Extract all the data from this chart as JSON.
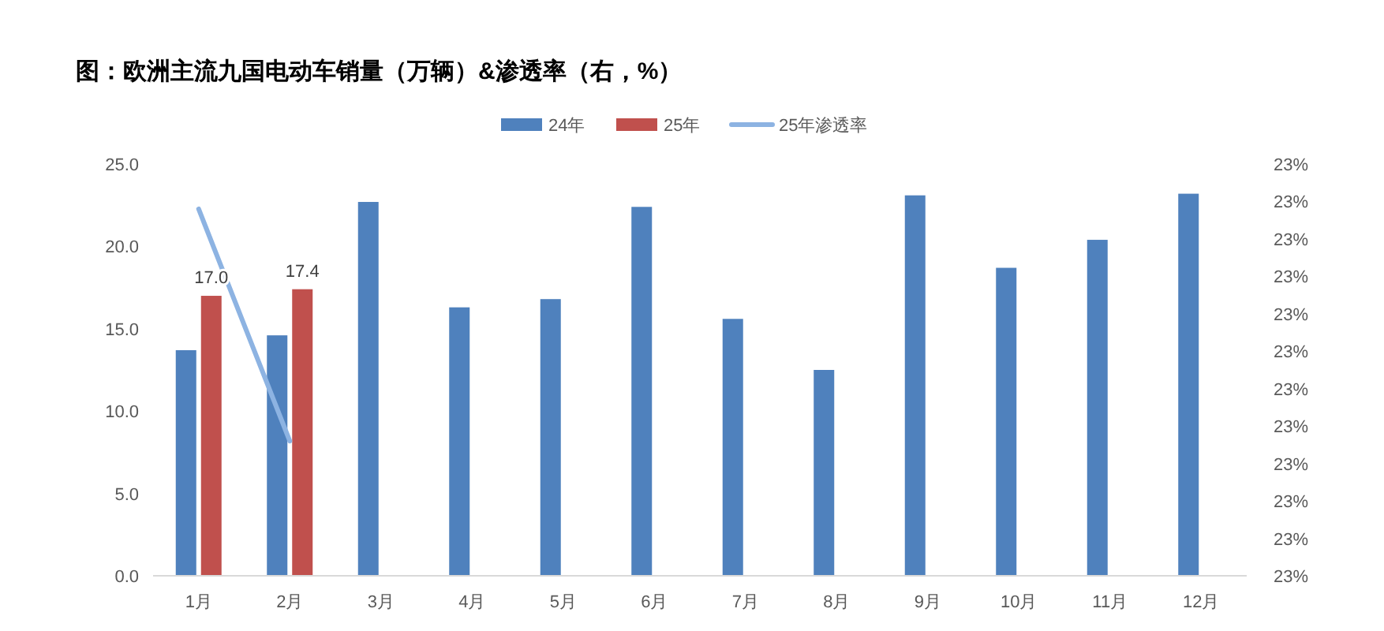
{
  "chart_data": {
    "type": "bar",
    "title": "图：欧洲主流九国电动车销量（万辆）&渗透率（右，%）",
    "categories": [
      "1月",
      "2月",
      "3月",
      "4月",
      "5月",
      "6月",
      "7月",
      "8月",
      "9月",
      "10月",
      "11月",
      "12月"
    ],
    "series": [
      {
        "name": "24年",
        "color": "#4f81bd",
        "values": [
          13.7,
          14.6,
          22.7,
          16.3,
          16.8,
          22.4,
          15.6,
          12.5,
          23.1,
          18.7,
          20.4,
          23.2
        ]
      },
      {
        "name": "25年",
        "color": "#c0504d",
        "values": [
          17.0,
          17.4,
          null,
          null,
          null,
          null,
          null,
          null,
          null,
          null,
          null,
          null
        ],
        "value_labels": [
          "17.0",
          "17.4",
          null,
          null,
          null,
          null,
          null,
          null,
          null,
          null,
          null,
          null
        ]
      },
      {
        "name": "25年渗透率",
        "type": "line",
        "axis": "y2",
        "color": "#8db3e2",
        "values": [
          22.99,
          22.68,
          null,
          null,
          null,
          null,
          null,
          null,
          null,
          null,
          null,
          null
        ]
      }
    ],
    "ylim": [
      0,
      25
    ],
    "yticks": [
      {
        "value": 0,
        "label": "0.0"
      },
      {
        "value": 5,
        "label": "5.0"
      },
      {
        "value": 10,
        "label": "10.0"
      },
      {
        "value": 15,
        "label": "15.0"
      },
      {
        "value": 20,
        "label": "20.0"
      },
      {
        "value": 25,
        "label": "25.0"
      }
    ],
    "y2lim": [
      22.5,
      23.05
    ],
    "y2ticks": [
      {
        "value": 22.5,
        "label": "23%"
      },
      {
        "value": 22.55,
        "label": "23%"
      },
      {
        "value": 22.6,
        "label": "23%"
      },
      {
        "value": 22.65,
        "label": "23%"
      },
      {
        "value": 22.7,
        "label": "23%"
      },
      {
        "value": 22.75,
        "label": "23%"
      },
      {
        "value": 22.8,
        "label": "23%"
      },
      {
        "value": 22.85,
        "label": "23%"
      },
      {
        "value": 22.9,
        "label": "23%"
      },
      {
        "value": 22.95,
        "label": "23%"
      },
      {
        "value": 23.0,
        "label": "23%"
      },
      {
        "value": 23.05,
        "label": "23%"
      }
    ],
    "legend": "top",
    "grid": false
  }
}
